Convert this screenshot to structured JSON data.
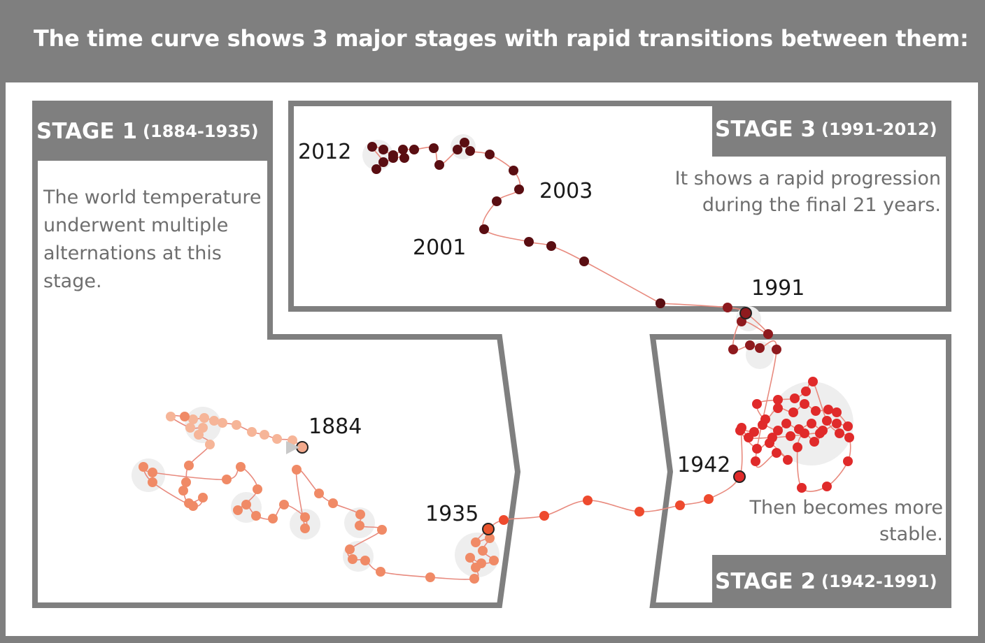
{
  "header": {
    "title": "The time curve shows 3 major stages with rapid transitions between them:"
  },
  "stages": [
    {
      "label": "STAGE 1",
      "range": "(1884-1935)",
      "description": [
        "The world temperature",
        "underwent multiple",
        "alternations at this",
        "stage."
      ]
    },
    {
      "label": "STAGE 3",
      "range": "(1991-2012)",
      "description": [
        "It shows a rapid progression",
        "during the final 21 years."
      ]
    },
    {
      "label": "STAGE 2",
      "range": "(1942-1991)",
      "description": [
        "Then becomes more",
        "stable."
      ]
    }
  ],
  "year_labels": [
    "1884",
    "1935",
    "1942",
    "1991",
    "2001",
    "2003",
    "2012"
  ],
  "colors": {
    "frame": "#7f7f7f",
    "stage1_points": "#f08a66",
    "stage1_light": "#f6b598",
    "stage2_points": "#e02a2a",
    "stage3_points": "#5a0e12",
    "curve": "#e88a7e"
  }
}
